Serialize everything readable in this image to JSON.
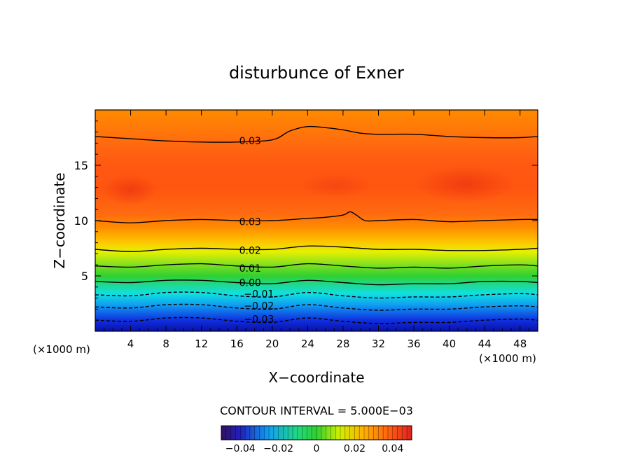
{
  "chart_data": {
    "type": "contour",
    "title": "disturbunce of Exner",
    "xlabel": "X−coordinate",
    "ylabel": "Z−coordinate",
    "x_unit": "(×1000 m)",
    "y_unit": "(×1000 m)",
    "xlim": [
      0,
      50
    ],
    "ylim": [
      0,
      20
    ],
    "x_ticks": [
      4,
      8,
      12,
      16,
      20,
      24,
      28,
      32,
      36,
      40,
      44,
      48
    ],
    "y_ticks": [
      5,
      10,
      15
    ],
    "contour_interval_text": "CONTOUR INTERVAL = 5.000E−03",
    "contour_labels": [
      {
        "text": "0.03",
        "x": 17.5,
        "y": 17.2
      },
      {
        "text": "0.03",
        "x": 17.5,
        "y": 9.9
      },
      {
        "text": "0.02",
        "x": 17.5,
        "y": 7.3
      },
      {
        "text": "0.01",
        "x": 17.5,
        "y": 5.7
      },
      {
        "text": "0.00",
        "x": 17.5,
        "y": 4.4
      },
      {
        "text": "−0.01",
        "x": 18.5,
        "y": 3.4
      },
      {
        "text": "−0.02",
        "x": 18.5,
        "y": 2.3
      },
      {
        "text": "−0.03",
        "x": 18.5,
        "y": 1.1
      }
    ],
    "contour_lines": [
      {
        "level": 0.03,
        "style": "solid",
        "points": [
          [
            0,
            17.6
          ],
          [
            4,
            17.4
          ],
          [
            8,
            17.2
          ],
          [
            12,
            17.1
          ],
          [
            16,
            17.1
          ],
          [
            20,
            17.3
          ],
          [
            22,
            18.1
          ],
          [
            24,
            18.5
          ],
          [
            26,
            18.4
          ],
          [
            28,
            18.2
          ],
          [
            30,
            17.9
          ],
          [
            32,
            17.8
          ],
          [
            36,
            17.8
          ],
          [
            40,
            17.6
          ],
          [
            44,
            17.5
          ],
          [
            48,
            17.5
          ],
          [
            50,
            17.6
          ]
        ]
      },
      {
        "level": 0.03,
        "style": "solid",
        "points": [
          [
            0,
            10.0
          ],
          [
            4,
            9.8
          ],
          [
            8,
            10.0
          ],
          [
            12,
            10.1
          ],
          [
            16,
            10.0
          ],
          [
            20,
            10.0
          ],
          [
            24,
            10.2
          ],
          [
            26,
            10.3
          ],
          [
            28,
            10.5
          ],
          [
            28.8,
            10.8
          ],
          [
            29.5,
            10.5
          ],
          [
            30.5,
            10.0
          ],
          [
            32,
            10.0
          ],
          [
            36,
            10.1
          ],
          [
            40,
            9.9
          ],
          [
            44,
            10.0
          ],
          [
            48,
            10.1
          ],
          [
            50,
            10.1
          ]
        ]
      },
      {
        "level": 0.02,
        "style": "solid",
        "points": [
          [
            0,
            7.4
          ],
          [
            4,
            7.2
          ],
          [
            8,
            7.4
          ],
          [
            12,
            7.5
          ],
          [
            16,
            7.4
          ],
          [
            20,
            7.4
          ],
          [
            24,
            7.7
          ],
          [
            28,
            7.6
          ],
          [
            32,
            7.4
          ],
          [
            36,
            7.4
          ],
          [
            40,
            7.3
          ],
          [
            44,
            7.3
          ],
          [
            48,
            7.4
          ],
          [
            50,
            7.5
          ]
        ]
      },
      {
        "level": 0.01,
        "style": "solid",
        "points": [
          [
            0,
            5.9
          ],
          [
            4,
            5.8
          ],
          [
            8,
            6.0
          ],
          [
            12,
            6.1
          ],
          [
            16,
            5.9
          ],
          [
            20,
            5.8
          ],
          [
            24,
            6.1
          ],
          [
            28,
            5.9
          ],
          [
            32,
            5.7
          ],
          [
            36,
            5.8
          ],
          [
            40,
            5.7
          ],
          [
            44,
            5.9
          ],
          [
            48,
            6.0
          ],
          [
            50,
            5.9
          ]
        ]
      },
      {
        "level": 0.0,
        "style": "solid",
        "points": [
          [
            0,
            4.5
          ],
          [
            4,
            4.4
          ],
          [
            8,
            4.6
          ],
          [
            12,
            4.6
          ],
          [
            16,
            4.4
          ],
          [
            20,
            4.3
          ],
          [
            24,
            4.6
          ],
          [
            28,
            4.4
          ],
          [
            32,
            4.2
          ],
          [
            36,
            4.3
          ],
          [
            40,
            4.3
          ],
          [
            44,
            4.5
          ],
          [
            48,
            4.5
          ],
          [
            50,
            4.4
          ]
        ]
      },
      {
        "level": -0.01,
        "style": "dashed",
        "points": [
          [
            0,
            3.3
          ],
          [
            4,
            3.2
          ],
          [
            8,
            3.5
          ],
          [
            12,
            3.5
          ],
          [
            16,
            3.2
          ],
          [
            20,
            3.1
          ],
          [
            24,
            3.5
          ],
          [
            28,
            3.2
          ],
          [
            32,
            3.0
          ],
          [
            36,
            3.1
          ],
          [
            40,
            3.1
          ],
          [
            44,
            3.3
          ],
          [
            48,
            3.4
          ],
          [
            50,
            3.3
          ]
        ]
      },
      {
        "level": -0.02,
        "style": "dashed",
        "points": [
          [
            0,
            2.2
          ],
          [
            4,
            2.1
          ],
          [
            8,
            2.4
          ],
          [
            12,
            2.4
          ],
          [
            16,
            2.1
          ],
          [
            20,
            2.0
          ],
          [
            24,
            2.4
          ],
          [
            28,
            2.1
          ],
          [
            32,
            1.9
          ],
          [
            36,
            2.0
          ],
          [
            40,
            2.0
          ],
          [
            44,
            2.2
          ],
          [
            48,
            2.3
          ],
          [
            50,
            2.2
          ]
        ]
      },
      {
        "level": -0.03,
        "style": "dashed",
        "points": [
          [
            0,
            1.0
          ],
          [
            4,
            0.9
          ],
          [
            8,
            1.2
          ],
          [
            12,
            1.2
          ],
          [
            16,
            0.9
          ],
          [
            20,
            0.8
          ],
          [
            24,
            1.2
          ],
          [
            28,
            0.9
          ],
          [
            32,
            0.7
          ],
          [
            36,
            0.8
          ],
          [
            40,
            0.8
          ],
          [
            44,
            1.0
          ],
          [
            48,
            1.1
          ],
          [
            50,
            1.0
          ]
        ]
      }
    ],
    "colorbar": {
      "range": [
        -0.05,
        0.05
      ],
      "tick_labels": [
        "−0.04",
        "−0.02",
        "0",
        "0.02",
        "0.04"
      ],
      "tick_values": [
        -0.04,
        -0.02,
        0,
        0.02,
        0.04
      ]
    },
    "colors": {
      "blue": "#1020c8",
      "cyan": "#10d8e8",
      "green": "#30d030",
      "yellow": "#f0f000",
      "orange": "#ff8a00",
      "red_orange": "#ff5a10",
      "red": "#f03c10"
    }
  }
}
